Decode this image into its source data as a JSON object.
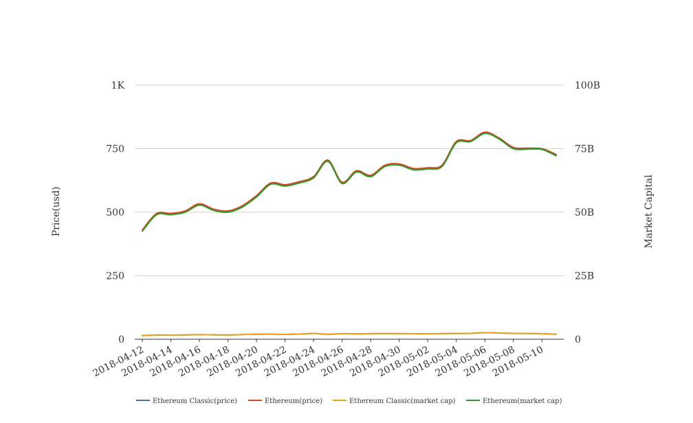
{
  "chart_data": {
    "type": "line",
    "title": "",
    "left_axis": {
      "label": "Price(usd)",
      "ylim": [
        0,
        1000
      ],
      "ticks": [
        0,
        250,
        500,
        750,
        1000
      ],
      "tick_labels": [
        "0",
        "250",
        "500",
        "750",
        "1K"
      ]
    },
    "right_axis": {
      "label": "Market Capital",
      "ylim": [
        0,
        100000000000
      ],
      "ticks": [
        0,
        25000000000,
        50000000000,
        75000000000,
        100000000000
      ],
      "tick_labels": [
        "0",
        "25B",
        "50B",
        "75B",
        "100B"
      ]
    },
    "x": [
      "2018-04-12",
      "2018-04-13",
      "2018-04-14",
      "2018-04-15",
      "2018-04-16",
      "2018-04-17",
      "2018-04-18",
      "2018-04-19",
      "2018-04-20",
      "2018-04-21",
      "2018-04-22",
      "2018-04-23",
      "2018-04-24",
      "2018-04-25",
      "2018-04-26",
      "2018-04-27",
      "2018-04-28",
      "2018-04-29",
      "2018-04-30",
      "2018-05-01",
      "2018-05-02",
      "2018-05-03",
      "2018-05-04",
      "2018-05-05",
      "2018-05-06",
      "2018-05-07",
      "2018-05-08",
      "2018-05-09",
      "2018-05-10",
      "2018-05-11"
    ],
    "x_tick_labels": [
      "2018-04-12",
      "2018-04-14",
      "2018-04-16",
      "2018-04-18",
      "2018-04-20",
      "2018-04-22",
      "2018-04-24",
      "2018-04-26",
      "2018-04-28",
      "2018-04-30",
      "2018-05-02",
      "2018-05-04",
      "2018-05-06",
      "2018-05-08",
      "2018-05-10"
    ],
    "grid": true,
    "legend_position": "bottom",
    "series": [
      {
        "name": "Ethereum Classic(price)",
        "axis": "left",
        "color": "#3f6fa8",
        "values": [
          14.5,
          16.5,
          16.2,
          16.8,
          17.8,
          17.2,
          16.8,
          18.3,
          19.7,
          19.8,
          19.0,
          20.2,
          22.5,
          19.5,
          21.8,
          21.0,
          21.8,
          22.2,
          22.0,
          21.5,
          21.5,
          22.0,
          22.5,
          23.0,
          25.5,
          24.5,
          23.0,
          22.5,
          21.5,
          19.5
        ]
      },
      {
        "name": "Ethereum(price)",
        "axis": "left",
        "color": "#d8451f",
        "values": [
          430,
          495,
          495,
          505,
          533,
          512,
          505,
          525,
          565,
          615,
          608,
          620,
          640,
          705,
          618,
          663,
          645,
          685,
          690,
          672,
          675,
          685,
          778,
          782,
          815,
          792,
          755,
          752,
          750,
          727
        ]
      },
      {
        "name": "Ethereum Classic(market cap)",
        "axis": "right",
        "color": "#e8a317",
        "values": [
          1400000000,
          1650000000,
          1620000000,
          1680000000,
          1780000000,
          1720000000,
          1680000000,
          1830000000,
          1970000000,
          1980000000,
          1900000000,
          2020000000,
          2250000000,
          1950000000,
          2180000000,
          2100000000,
          2180000000,
          2220000000,
          2200000000,
          2150000000,
          2150000000,
          2200000000,
          2250000000,
          2300000000,
          2550000000,
          2450000000,
          2300000000,
          2250000000,
          2150000000,
          1950000000
        ]
      },
      {
        "name": "Ethereum(market cap)",
        "axis": "right",
        "color": "#2a9a2a",
        "values": [
          42500000000,
          49000000000,
          49000000000,
          50000000000,
          52800000000,
          50700000000,
          50000000000,
          52000000000,
          56000000000,
          61000000000,
          60300000000,
          61500000000,
          63500000000,
          70000000000,
          61300000000,
          65800000000,
          64000000000,
          68000000000,
          68500000000,
          66700000000,
          67000000000,
          68000000000,
          77300000000,
          77800000000,
          81000000000,
          78800000000,
          75000000000,
          74800000000,
          74700000000,
          72200000000
        ]
      }
    ]
  }
}
